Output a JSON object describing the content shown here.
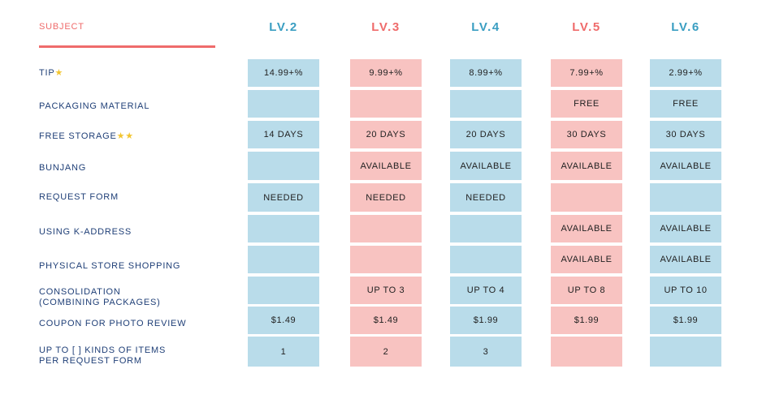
{
  "header": {
    "subject_label": "SUBJECT",
    "levels": [
      {
        "label": "LV.2",
        "color": "#3a9ec2"
      },
      {
        "label": "LV.3",
        "color": "#ef6b6b"
      },
      {
        "label": "LV.4",
        "color": "#3a9ec2"
      },
      {
        "label": "LV.5",
        "color": "#ef6b6b"
      },
      {
        "label": "LV.6",
        "color": "#3a9ec2"
      }
    ]
  },
  "rows": [
    {
      "label": "TIP",
      "stars": "★",
      "values": [
        "14.99+%",
        "9.99+%",
        "8.99+%",
        "7.99+%",
        "2.99+%"
      ]
    },
    {
      "label": "PACKAGING MATERIAL",
      "stars": "",
      "values": [
        "",
        "",
        "",
        "FREE",
        "FREE"
      ]
    },
    {
      "label": "FREE STORAGE",
      "stars": "★★",
      "values": [
        "14 DAYS",
        "20 DAYS",
        "20 DAYS",
        "30 DAYS",
        "30 DAYS"
      ]
    },
    {
      "label": "BUNJANG",
      "stars": "",
      "values": [
        "",
        "AVAILABLE",
        "AVAILABLE",
        "AVAILABLE",
        "AVAILABLE"
      ]
    },
    {
      "label": "REQUEST FORM",
      "stars": "",
      "values": [
        "NEEDED",
        "NEEDED",
        "NEEDED",
        "",
        ""
      ]
    },
    {
      "label": "USING K-ADDRESS",
      "stars": "",
      "values": [
        "",
        "",
        "",
        "AVAILABLE",
        "AVAILABLE"
      ]
    },
    {
      "label": "PHYSICAL STORE SHOPPING",
      "stars": "",
      "values": [
        "",
        "",
        "",
        "AVAILABLE",
        "AVAILABLE"
      ]
    },
    {
      "label": "CONSOLIDATION",
      "label_line2": "(COMBINING PACKAGES)",
      "stars": "",
      "values": [
        "",
        "UP TO 3",
        "UP TO 4",
        "UP TO 8",
        "UP TO 10"
      ]
    },
    {
      "label": "COUPON FOR PHOTO REVIEW",
      "stars": "",
      "values": [
        "$1.49",
        "$1.49",
        "$1.99",
        "$1.99",
        "$1.99"
      ]
    },
    {
      "label": "UP TO [ ] KINDS OF ITEMS",
      "label_line2": "PER REQUEST FORM",
      "stars": "",
      "values": [
        "1",
        "2",
        "3",
        "",
        ""
      ]
    }
  ]
}
